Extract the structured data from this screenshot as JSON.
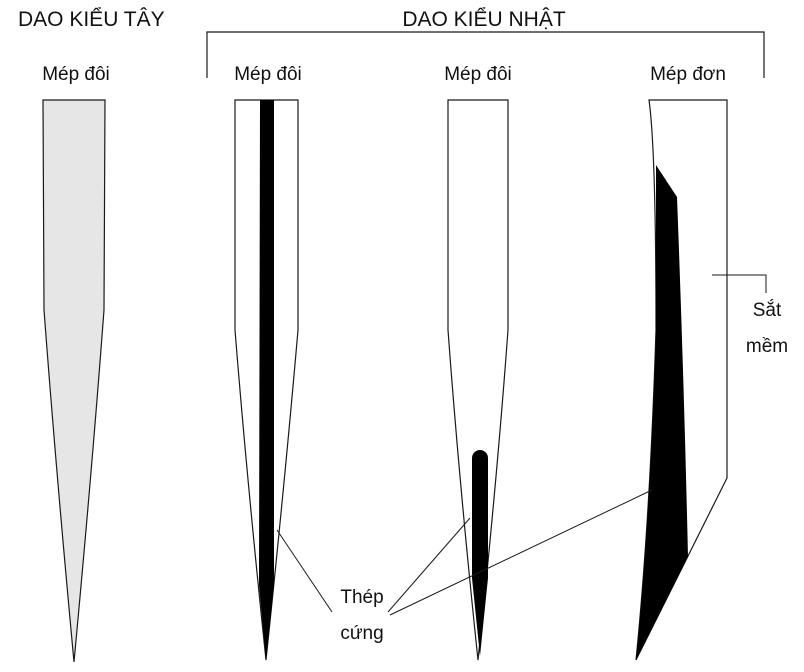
{
  "titles": {
    "western": "DAO KIỂU TÂY",
    "japanese": "DAO KIỂU NHẬT"
  },
  "blades": [
    {
      "label": "Mép đôi"
    },
    {
      "label": "Mép đôi"
    },
    {
      "label": "Mép đôi"
    },
    {
      "label": "Mép đơn"
    }
  ],
  "callouts": {
    "soft_iron": [
      "Sắt",
      "mềm"
    ],
    "hard_steel": [
      "Thép",
      "cứng"
    ]
  },
  "colors": {
    "outline": "#1a1a1a",
    "western_fill": "#e6e6e6",
    "steel": "#000000",
    "background": "#ffffff"
  }
}
